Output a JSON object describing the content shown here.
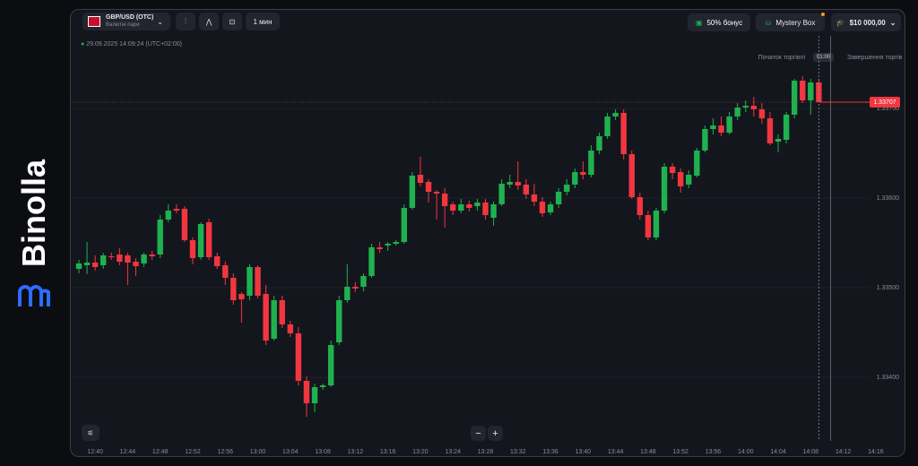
{
  "brand": "Binolla",
  "toolbar": {
    "pair": "GBP/USD (OTC)",
    "pair_type": "Валютні пари",
    "timeframe": "1 мин",
    "bonus": "50% бонус",
    "mystery": "Mystery Box",
    "balance": "$10 000,00"
  },
  "datetime": "29.09.2025 14:09:24 (UTC+02:00)",
  "trade_start": "Початок торгівлі",
  "timer": "01:00",
  "trade_end": "Завершення торгів",
  "zoom_out": "−",
  "zoom_in": "+",
  "chart_data": {
    "type": "candlestick",
    "up_color": "#1fb14f",
    "down_color": "#f2363f",
    "grid": true,
    "current_price": 1.33707,
    "ylim": [
      1.33331,
      1.33781
    ],
    "yticks": [
      {
        "value": 1.334,
        "label": "1.33400"
      },
      {
        "value": 1.335,
        "label": "1.33500"
      },
      {
        "value": 1.336,
        "label": "1.33600"
      },
      {
        "value": 1.337,
        "label": "1.33700"
      }
    ],
    "categories": [
      null,
      null,
      "12:40",
      null,
      null,
      null,
      "12:44",
      null,
      null,
      null,
      "12:48",
      null,
      null,
      null,
      "12:52",
      null,
      null,
      null,
      "12:56",
      null,
      null,
      null,
      "13:00",
      null,
      null,
      null,
      "13:04",
      null,
      null,
      null,
      "13:08",
      null,
      null,
      null,
      "13:12",
      null,
      null,
      null,
      "13:16",
      null,
      null,
      null,
      "13:20",
      null,
      null,
      null,
      "13:24",
      null,
      null,
      null,
      "13:28",
      null,
      null,
      null,
      "13:32",
      null,
      null,
      null,
      "13:36",
      null,
      null,
      null,
      "13:40",
      null,
      null,
      null,
      "13:44",
      null,
      null,
      null,
      "13:48",
      null,
      null,
      null,
      "13:52",
      null,
      null,
      null,
      "13:56",
      null,
      null,
      null,
      "14:00",
      null,
      null,
      null,
      "14:04",
      null,
      null,
      null,
      "14:08",
      null,
      null,
      null,
      "14:12",
      null,
      null,
      null,
      "14:16"
    ],
    "open": [
      1.33521,
      1.33525,
      1.33528,
      1.33525,
      1.33535,
      1.33537,
      1.33536,
      1.33529,
      1.33527,
      1.33537,
      1.33537,
      1.33576,
      1.33588,
      1.33588,
      1.33553,
      1.33534,
      1.33573,
      1.33535,
      1.33525,
      1.33511,
      1.33493,
      1.33491,
      1.33523,
      1.33493,
      1.33443,
      1.33486,
      1.33459,
      1.33449,
      1.33396,
      1.33371,
      1.33389,
      1.33391,
      1.33439,
      1.33486,
      1.33501,
      1.33501,
      1.33513,
      1.33545,
      1.33547,
      1.33549,
      1.33551,
      1.33589,
      1.33626,
      1.33618,
      1.33607,
      1.33605,
      1.33593,
      1.33586,
      1.33593,
      1.33591,
      1.33595,
      1.33578,
      1.33593,
      1.33615,
      1.33618,
      1.33615,
      1.33604,
      1.33596,
      1.33584,
      1.33593,
      1.33607,
      1.33615,
      1.33629,
      1.33626,
      1.33653,
      1.33669,
      1.33691,
      1.33695,
      1.33649,
      1.33601,
      1.33581,
      1.33556,
      1.33586,
      1.33635,
      1.33629,
      1.33615,
      1.33625,
      1.33653,
      1.33677,
      1.33681,
      1.33673,
      1.33691,
      1.33701,
      1.33703,
      1.33699,
      1.33689,
      1.33663,
      1.33665,
      1.33693,
      1.33731,
      1.33709,
      1.33729,
      null,
      null,
      null,
      null,
      null,
      null,
      null
    ],
    "high": [
      1.33531,
      1.33551,
      1.33536,
      1.33539,
      1.33539,
      1.33544,
      1.33539,
      1.33533,
      1.33539,
      1.33541,
      1.33581,
      1.33593,
      1.33593,
      1.33591,
      1.33556,
      1.33573,
      1.33577,
      1.33539,
      1.33529,
      1.33516,
      1.33495,
      1.33526,
      1.33525,
      1.33503,
      1.33491,
      1.33491,
      1.33463,
      1.33456,
      1.33401,
      1.33393,
      1.33393,
      1.33441,
      1.33491,
      1.33526,
      1.33506,
      1.33516,
      1.33549,
      1.33551,
      1.33551,
      1.33553,
      1.33593,
      1.33629,
      1.33646,
      1.33621,
      1.33609,
      1.33611,
      1.33596,
      1.33599,
      1.33597,
      1.33599,
      1.33599,
      1.33596,
      1.33621,
      1.33626,
      1.33641,
      1.33621,
      1.33616,
      1.33601,
      1.33596,
      1.33611,
      1.33621,
      1.33633,
      1.33641,
      1.33659,
      1.33673,
      1.33695,
      1.33699,
      1.33699,
      1.33653,
      1.33606,
      1.33586,
      1.33589,
      1.33639,
      1.33639,
      1.33633,
      1.33631,
      1.33656,
      1.33681,
      1.33689,
      1.33691,
      1.33696,
      1.33706,
      1.33709,
      1.33713,
      1.33706,
      1.33696,
      1.33671,
      1.33696,
      1.33733,
      1.33736,
      1.33733,
      1.33733,
      null,
      null,
      null,
      null,
      null,
      null,
      null
    ],
    "low": [
      1.33516,
      1.33515,
      1.33519,
      1.33521,
      1.33531,
      1.33525,
      1.33503,
      1.33513,
      1.33523,
      1.33531,
      1.33533,
      1.33573,
      1.33583,
      1.33551,
      1.33526,
      1.33531,
      1.33531,
      1.33521,
      1.33503,
      1.33481,
      1.33461,
      1.33486,
      1.33488,
      1.33436,
      1.33441,
      1.33455,
      1.33445,
      1.33391,
      1.33356,
      1.33361,
      1.33386,
      1.33389,
      1.33436,
      1.33483,
      1.33495,
      1.33496,
      1.33511,
      1.33539,
      1.33541,
      1.33547,
      1.33549,
      1.33587,
      1.33613,
      1.33595,
      1.33576,
      1.33567,
      1.33581,
      1.33583,
      1.33585,
      1.33586,
      1.33576,
      1.33569,
      1.33591,
      1.33611,
      1.33609,
      1.33599,
      1.33591,
      1.33579,
      1.33581,
      1.33589,
      1.33603,
      1.33611,
      1.33621,
      1.33623,
      1.33649,
      1.33666,
      1.33687,
      1.33643,
      1.33599,
      1.33576,
      1.33553,
      1.33553,
      1.33583,
      1.33621,
      1.33606,
      1.33611,
      1.33623,
      1.33651,
      1.33671,
      1.33669,
      1.33671,
      1.33687,
      1.33696,
      1.33691,
      1.33683,
      1.33659,
      1.33651,
      1.33661,
      1.33689,
      1.33706,
      1.33693,
      1.33707,
      null,
      null,
      null,
      null,
      null,
      null,
      null
    ],
    "close": [
      1.33527,
      1.33528,
      1.33523,
      1.33536,
      1.33534,
      1.33529,
      1.33528,
      1.33524,
      1.33537,
      1.33535,
      1.33576,
      1.33586,
      1.33586,
      1.33553,
      1.33533,
      1.33571,
      1.33534,
      1.33524,
      1.33511,
      1.33486,
      1.33487,
      1.33523,
      1.33491,
      1.33441,
      1.33486,
      1.33459,
      1.33449,
      1.33396,
      1.33371,
      1.33389,
      1.33391,
      1.33436,
      1.33486,
      1.33501,
      1.33499,
      1.33513,
      1.33545,
      1.33543,
      1.33549,
      1.33551,
      1.33589,
      1.33625,
      1.33617,
      1.33607,
      1.33605,
      1.33591,
      1.33586,
      1.33593,
      1.33589,
      1.33595,
      1.33581,
      1.33593,
      1.33616,
      1.33618,
      1.33614,
      1.33604,
      1.33596,
      1.33583,
      1.33593,
      1.33607,
      1.33615,
      1.33629,
      1.33626,
      1.33653,
      1.33669,
      1.33691,
      1.33695,
      1.33649,
      1.33601,
      1.33581,
      1.33556,
      1.33586,
      1.33635,
      1.33628,
      1.33613,
      1.33626,
      1.33653,
      1.33677,
      1.33681,
      1.33673,
      1.33691,
      1.33701,
      1.33703,
      1.33699,
      1.33689,
      1.33661,
      1.33666,
      1.33693,
      1.33731,
      1.33709,
      1.33729,
      1.33707,
      null,
      null,
      null,
      null,
      null,
      null,
      null
    ]
  }
}
